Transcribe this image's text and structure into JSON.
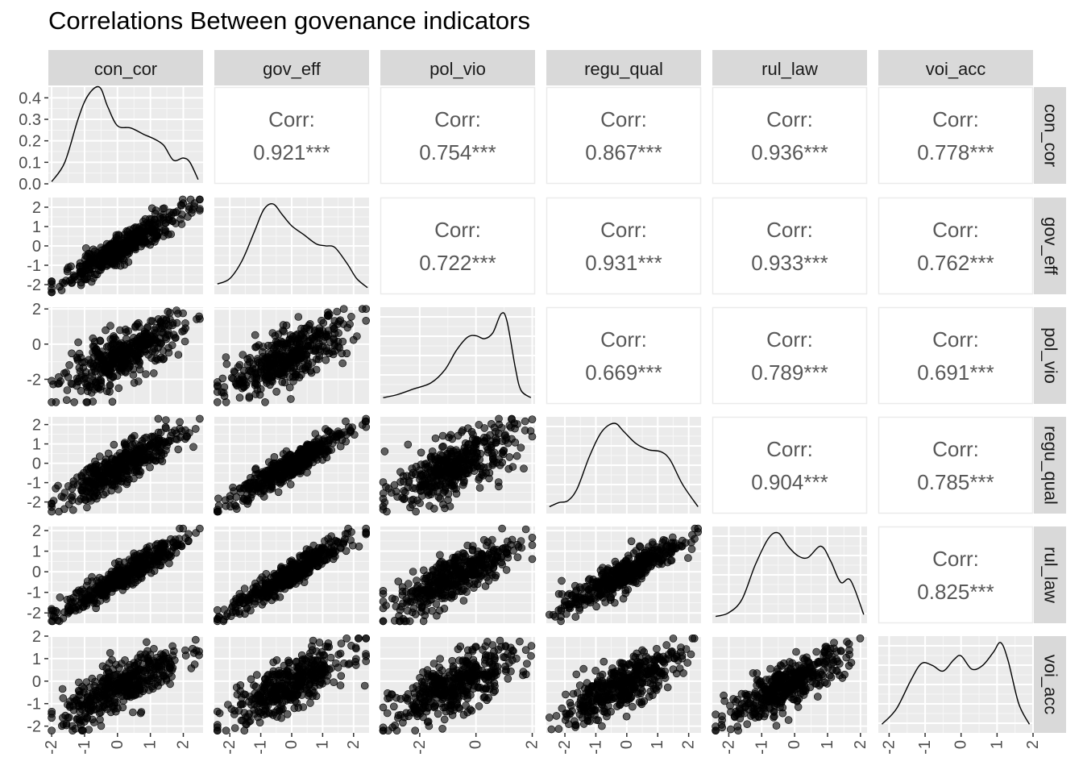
{
  "title": "Correlations Between govenance indicators",
  "chart_data": {
    "type": "scatter-matrix",
    "title": "Correlations Between govenance indicators",
    "variables": [
      "con_cor",
      "gov_eff",
      "pol_vio",
      "regu_qual",
      "rul_law",
      "voi_acc"
    ],
    "axis_ranges": {
      "con_cor": [
        -2.1,
        2.6
      ],
      "gov_eff": [
        -2.5,
        2.5
      ],
      "pol_vio": [
        -3.4,
        2.1
      ],
      "regu_qual": [
        -2.6,
        2.4
      ],
      "rul_law": [
        -2.5,
        2.2
      ],
      "voi_acc": [
        -2.3,
        2.0
      ]
    },
    "density_ylim": [
      0,
      0.45
    ],
    "density_yticks": [
      "0.0",
      "0.1",
      "0.2",
      "0.3",
      "0.4"
    ],
    "tick_values": {
      "con_cor": [
        -2,
        -1,
        0,
        1,
        2
      ],
      "gov_eff": [
        -2,
        -1,
        0,
        1,
        2
      ],
      "pol_vio": [
        -2,
        0,
        2
      ],
      "regu_qual": [
        -2,
        -1,
        0,
        1,
        2
      ],
      "rul_law": [
        -2,
        -1,
        0,
        1,
        2
      ],
      "voi_acc": [
        -2,
        -1,
        0,
        1,
        2
      ]
    },
    "correlations": [
      {
        "row": "con_cor",
        "col": "gov_eff",
        "label": "Corr:",
        "value": "0.921***"
      },
      {
        "row": "con_cor",
        "col": "pol_vio",
        "label": "Corr:",
        "value": "0.754***"
      },
      {
        "row": "con_cor",
        "col": "regu_qual",
        "label": "Corr:",
        "value": "0.867***"
      },
      {
        "row": "con_cor",
        "col": "rul_law",
        "label": "Corr:",
        "value": "0.936***"
      },
      {
        "row": "con_cor",
        "col": "voi_acc",
        "label": "Corr:",
        "value": "0.778***"
      },
      {
        "row": "gov_eff",
        "col": "pol_vio",
        "label": "Corr:",
        "value": "0.722***"
      },
      {
        "row": "gov_eff",
        "col": "regu_qual",
        "label": "Corr:",
        "value": "0.931***"
      },
      {
        "row": "gov_eff",
        "col": "rul_law",
        "label": "Corr:",
        "value": "0.933***"
      },
      {
        "row": "gov_eff",
        "col": "voi_acc",
        "label": "Corr:",
        "value": "0.762***"
      },
      {
        "row": "pol_vio",
        "col": "regu_qual",
        "label": "Corr:",
        "value": "0.669***"
      },
      {
        "row": "pol_vio",
        "col": "rul_law",
        "label": "Corr:",
        "value": "0.789***"
      },
      {
        "row": "pol_vio",
        "col": "voi_acc",
        "label": "Corr:",
        "value": "0.691***"
      },
      {
        "row": "regu_qual",
        "col": "rul_law",
        "label": "Corr:",
        "value": "0.904***"
      },
      {
        "row": "regu_qual",
        "col": "voi_acc",
        "label": "Corr:",
        "value": "0.785***"
      },
      {
        "row": "rul_law",
        "col": "voi_acc",
        "label": "Corr:",
        "value": "0.825***"
      }
    ],
    "densities": {
      "con_cor": [
        [
          -2.0,
          0.01
        ],
        [
          -1.6,
          0.1
        ],
        [
          -1.2,
          0.3
        ],
        [
          -0.9,
          0.41
        ],
        [
          -0.55,
          0.45
        ],
        [
          -0.3,
          0.36
        ],
        [
          0,
          0.27
        ],
        [
          0.4,
          0.26
        ],
        [
          0.8,
          0.23
        ],
        [
          1.1,
          0.21
        ],
        [
          1.4,
          0.18
        ],
        [
          1.7,
          0.11
        ],
        [
          2.0,
          0.12
        ],
        [
          2.2,
          0.1
        ],
        [
          2.45,
          0.02
        ]
      ],
      "gov_eff": [
        [
          -2.4,
          0.03
        ],
        [
          -2.0,
          0.06
        ],
        [
          -1.6,
          0.16
        ],
        [
          -1.2,
          0.32
        ],
        [
          -0.9,
          0.44
        ],
        [
          -0.6,
          0.47
        ],
        [
          -0.3,
          0.41
        ],
        [
          0,
          0.35
        ],
        [
          0.4,
          0.3
        ],
        [
          0.8,
          0.25
        ],
        [
          1.1,
          0.24
        ],
        [
          1.4,
          0.23
        ],
        [
          1.8,
          0.14
        ],
        [
          2.1,
          0.06
        ],
        [
          2.45,
          0.01
        ]
      ],
      "pol_vio": [
        [
          -3.3,
          0.01
        ],
        [
          -2.8,
          0.03
        ],
        [
          -2.2,
          0.07
        ],
        [
          -1.6,
          0.11
        ],
        [
          -1.1,
          0.2
        ],
        [
          -0.7,
          0.33
        ],
        [
          -0.3,
          0.42
        ],
        [
          0,
          0.43
        ],
        [
          0.3,
          0.41
        ],
        [
          0.6,
          0.45
        ],
        [
          0.9,
          0.58
        ],
        [
          1.1,
          0.53
        ],
        [
          1.4,
          0.21
        ],
        [
          1.6,
          0.06
        ],
        [
          1.95,
          0.01
        ]
      ],
      "regu_qual": [
        [
          -2.5,
          0.01
        ],
        [
          -2.2,
          0.03
        ],
        [
          -1.9,
          0.04
        ],
        [
          -1.6,
          0.1
        ],
        [
          -1.2,
          0.26
        ],
        [
          -0.8,
          0.38
        ],
        [
          -0.4,
          0.42
        ],
        [
          -0.1,
          0.38
        ],
        [
          0.3,
          0.32
        ],
        [
          0.7,
          0.29
        ],
        [
          1.1,
          0.28
        ],
        [
          1.4,
          0.24
        ],
        [
          1.8,
          0.12
        ],
        [
          2.3,
          0.01
        ]
      ],
      "rul_law": [
        [
          -2.4,
          0.01
        ],
        [
          -2.0,
          0.03
        ],
        [
          -1.6,
          0.1
        ],
        [
          -1.2,
          0.28
        ],
        [
          -0.8,
          0.42
        ],
        [
          -0.5,
          0.45
        ],
        [
          -0.2,
          0.38
        ],
        [
          0.1,
          0.33
        ],
        [
          0.4,
          0.32
        ],
        [
          0.8,
          0.38
        ],
        [
          1.1,
          0.3
        ],
        [
          1.4,
          0.19
        ],
        [
          1.7,
          0.2
        ],
        [
          2.1,
          0.02
        ]
      ],
      "voi_acc": [
        [
          -2.2,
          0.02
        ],
        [
          -1.8,
          0.1
        ],
        [
          -1.4,
          0.25
        ],
        [
          -1.1,
          0.34
        ],
        [
          -0.8,
          0.33
        ],
        [
          -0.5,
          0.3
        ],
        [
          -0.2,
          0.36
        ],
        [
          0,
          0.38
        ],
        [
          0.3,
          0.31
        ],
        [
          0.6,
          0.33
        ],
        [
          0.9,
          0.4
        ],
        [
          1.1,
          0.45
        ],
        [
          1.3,
          0.36
        ],
        [
          1.6,
          0.13
        ],
        [
          1.9,
          0.02
        ]
      ]
    },
    "grid": true,
    "panel_background": "#ebebeb",
    "strip_background": "#d9d9d9",
    "point_color": "#000000",
    "point_opacity": 0.6
  }
}
